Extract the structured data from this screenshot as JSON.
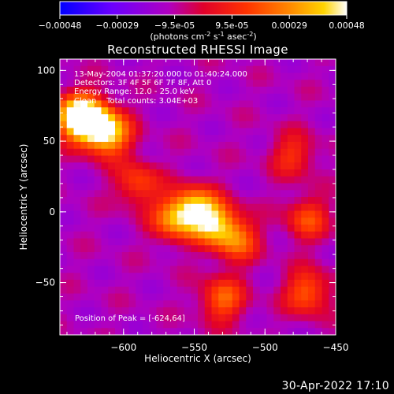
{
  "chart_data": {
    "type": "heatmap",
    "title": "Reconstructed RHESSI Image",
    "xlabel": "Heliocentric X (arcsec)",
    "ylabel": "Heliocentric Y (arcsec)",
    "xlim": [
      -645,
      -450
    ],
    "ylim": [
      -87,
      108
    ],
    "x_ticks": [
      -600,
      -550,
      -500,
      -450
    ],
    "y_ticks": [
      -50,
      0,
      50,
      100
    ],
    "colorbar": {
      "range": [
        -0.00048,
        0.00048
      ],
      "ticks": [
        "-0.00048",
        "-0.00029",
        "-9.5e-05",
        "9.5e-05",
        "0.00029",
        "0.00048"
      ],
      "label_parts": [
        "(photons cm",
        "-2",
        " s",
        "-1",
        " asec",
        "-2",
        ")"
      ]
    },
    "annotations": [
      "13-May-2004 01:37:20.000 to 01:40:24.000",
      "Detectors: 3F 4F 5F 6F 7F 8F, Att 0",
      "Energy Range: 12.0 - 25.0 keV",
      "Clean    Total counts: 3.04E+03"
    ],
    "peak_label": "Position of Peak = [-624,64]",
    "peak_position": [
      -624,
      64
    ],
    "sources": [
      {
        "x": -624,
        "y": 64,
        "peak": 0.00046
      },
      {
        "x": -610,
        "y": 55,
        "peak": 0.00036
      },
      {
        "x": -635,
        "y": 68,
        "peak": 0.0003
      },
      {
        "x": -550,
        "y": 2,
        "peak": 0.00034
      },
      {
        "x": -535,
        "y": -8,
        "peak": 0.0003
      },
      {
        "x": -565,
        "y": -5,
        "peak": 0.00024
      },
      {
        "x": -520,
        "y": -20,
        "peak": 0.00022
      },
      {
        "x": -590,
        "y": 20,
        "peak": 0.00016
      },
      {
        "x": -530,
        "y": -62,
        "peak": 0.00022
      },
      {
        "x": -470,
        "y": -57,
        "peak": 0.00022
      },
      {
        "x": -470,
        "y": -5,
        "peak": 0.00016
      },
      {
        "x": -480,
        "y": 40,
        "peak": 0.00012
      }
    ]
  },
  "footer": {
    "timestamp": "30-Apr-2022 17:10"
  },
  "colors": {
    "background": "#000000",
    "axes": "#ffffff"
  }
}
